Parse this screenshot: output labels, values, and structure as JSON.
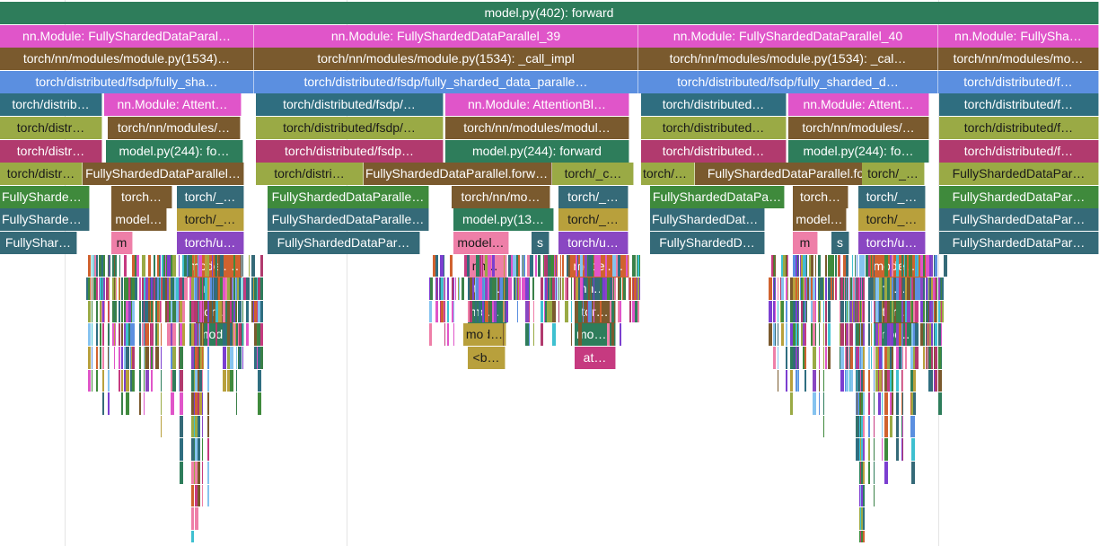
{
  "palette": {
    "top": "#2e7d5b",
    "nn": "#e055c9",
    "module": "#7a5a2e",
    "fsdp": "#5b8fe0",
    "teal": "#2f6e80",
    "olive": "#9aaa45",
    "magenta": "#b13a6e",
    "leaf": "#3f8a3c",
    "green2": "#3a8048",
    "slate": "#356a78",
    "orange": "#d0622f",
    "gold": "#b8a03c",
    "purple": "#8a47c2",
    "pink": "#ee7fa8",
    "sky": "#86c3ef",
    "plum": "#c63a80",
    "bright_purple": "#7b3fd0",
    "cyan": "#3ec0d0"
  },
  "frames": [
    {
      "text": "model.py(402): forward",
      "color": "top",
      "kind": "call",
      "interactable": true
    },
    {
      "text": "nn.Module: FullyShardedDataParal…",
      "color": "nn",
      "kind": "module"
    },
    {
      "text": "nn.Module: FullyShardedDataParallel_39",
      "color": "nn",
      "kind": "module"
    },
    {
      "text": "nn.Module: FullyShardedDataParallel_40",
      "color": "nn",
      "kind": "module"
    },
    {
      "text": "nn.Module: FullySha…",
      "color": "nn",
      "kind": "module"
    },
    {
      "text": "torch/nn/modules/module.py(1534)…",
      "color": "module"
    },
    {
      "text": "torch/nn/modules/module.py(1534): _call_impl",
      "color": "module"
    },
    {
      "text": "torch/nn/modules/module.py(1534): _cal…",
      "color": "module"
    },
    {
      "text": "torch/nn/modules/mo…",
      "color": "module"
    },
    {
      "text": "torch/distributed/fsdp/fully_sha…",
      "color": "fsdp"
    },
    {
      "text": "torch/distributed/fsdp/fully_sharded_data_paralle…",
      "color": "fsdp"
    },
    {
      "text": "torch/distributed/fsdp/fully_sharded_d…",
      "color": "fsdp"
    },
    {
      "text": "torch/distributed/f…",
      "color": "fsdp"
    },
    {
      "text": "torch/distrib…",
      "color": "teal"
    },
    {
      "text": "nn.Module: Attent…",
      "color": "nn"
    },
    {
      "text": "torch/distributed/fsdp/…",
      "color": "teal"
    },
    {
      "text": "nn.Module: AttentionBl…",
      "color": "nn"
    },
    {
      "text": "torch/distributed…",
      "color": "teal"
    },
    {
      "text": "nn.Module: Attent…",
      "color": "nn"
    },
    {
      "text": "torch/distributed/f…",
      "color": "teal"
    },
    {
      "text": "torch/distr…",
      "color": "olive"
    },
    {
      "text": "torch/nn/modules/…",
      "color": "module"
    },
    {
      "text": "torch/distributed/fsdp/…",
      "color": "olive"
    },
    {
      "text": "torch/nn/modules/modul…",
      "color": "module"
    },
    {
      "text": "torch/distributed…",
      "color": "olive"
    },
    {
      "text": "torch/nn/modules/…",
      "color": "module"
    },
    {
      "text": "torch/distributed/f…",
      "color": "olive"
    },
    {
      "text": "torch/distr…",
      "color": "magenta"
    },
    {
      "text": "model.py(244): fo…",
      "color": "top"
    },
    {
      "text": "torch/distributed/fsdp…",
      "color": "magenta"
    },
    {
      "text": "model.py(244): forward",
      "color": "top"
    },
    {
      "text": "torch/distributed…",
      "color": "magenta"
    },
    {
      "text": "model.py(244): fo…",
      "color": "top"
    },
    {
      "text": "torch/distributed/f…",
      "color": "magenta"
    },
    {
      "text": "torch/distr…",
      "color": "olive"
    },
    {
      "text": "FullyShardedDataParallel…",
      "color": "module"
    },
    {
      "text": "model.py(244): forward",
      "color": "olive"
    },
    {
      "text": "torch/distri…",
      "color": "olive"
    },
    {
      "text": "FullyShardedDataParallel.forward",
      "color": "module"
    },
    {
      "text": "torch/_c…",
      "color": "olive"
    },
    {
      "text": "torch/distr…",
      "color": "olive"
    },
    {
      "text": "FullyShardedDataParallel.forward",
      "color": "module"
    },
    {
      "text": "torch/_…",
      "color": "olive"
    },
    {
      "text": "FullyShardedDataPar…",
      "color": "olive"
    },
    {
      "text": "FullyShardedDataPar…",
      "color": "leaf"
    },
    {
      "text": "torch…",
      "color": "module"
    },
    {
      "text": "torch/_…",
      "color": "slate"
    },
    {
      "text": "FullyShardedDataParalle…",
      "color": "leaf"
    },
    {
      "text": "torch/nn/mo…",
      "color": "module"
    },
    {
      "text": "torch/_…",
      "color": "slate"
    },
    {
      "text": "FullyShardedDataPa…",
      "color": "leaf"
    },
    {
      "text": "torch…",
      "color": "module"
    },
    {
      "text": "torch/_…",
      "color": "slate"
    },
    {
      "text": "FullyShardedDataPar…",
      "color": "leaf"
    },
    {
      "text": "FullyShardedD…",
      "color": "slate"
    },
    {
      "text": "model…",
      "color": "module"
    },
    {
      "text": "torch/_…",
      "color": "gold"
    },
    {
      "text": "FullyShardedDataParalle…",
      "color": "slate"
    },
    {
      "text": "model.py(13…",
      "color": "top"
    },
    {
      "text": "torch/_…",
      "color": "gold"
    },
    {
      "text": "FullyShardedDataP…",
      "color": "slate"
    },
    {
      "text": "model…",
      "color": "module"
    },
    {
      "text": "torch/_…",
      "color": "gold"
    },
    {
      "text": "FullyShardedDataPar…",
      "color": "slate"
    },
    {
      "text": "FullyShar…",
      "color": "slate"
    },
    {
      "text": "m",
      "color": "pink"
    },
    {
      "text": "torch/u…",
      "color": "purple"
    },
    {
      "text": "FullyShardedDataPar…",
      "color": "slate"
    },
    {
      "text": "model…",
      "color": "pink"
    },
    {
      "text": "s",
      "color": "slate"
    },
    {
      "text": "torch/u…",
      "color": "purple"
    },
    {
      "text": "FullyShardedD…",
      "color": "slate"
    },
    {
      "text": "m",
      "color": "pink"
    },
    {
      "text": "s",
      "color": "slate"
    },
    {
      "text": "torch/u…",
      "color": "purple"
    },
    {
      "text": "FullyShardedDataPar…",
      "color": "slate"
    },
    {
      "text": "model.…",
      "color": "orange"
    },
    {
      "text": "nn.…",
      "color": "pink"
    },
    {
      "text": "model.…",
      "color": "orange"
    },
    {
      "text": "model.…",
      "color": "orange"
    },
    {
      "text": "nn.…",
      "color": "slate"
    },
    {
      "text": "tor…",
      "color": "module"
    },
    {
      "text": "nn.…",
      "color": "slate"
    },
    {
      "text": "nn.…",
      "color": "slate"
    },
    {
      "text": "tor…",
      "color": "module"
    },
    {
      "text": "mod…",
      "color": "top"
    },
    {
      "text": "tor…",
      "color": "module"
    },
    {
      "text": "tor…",
      "color": "module"
    },
    {
      "text": "mod…",
      "color": "top"
    },
    {
      "text": "mod…",
      "color": "gold"
    },
    {
      "text": "mod…",
      "color": "top"
    },
    {
      "text": "mod…",
      "color": "top"
    },
    {
      "text": "<b…",
      "color": "gold"
    },
    {
      "text": "at…",
      "color": "plum"
    }
  ]
}
